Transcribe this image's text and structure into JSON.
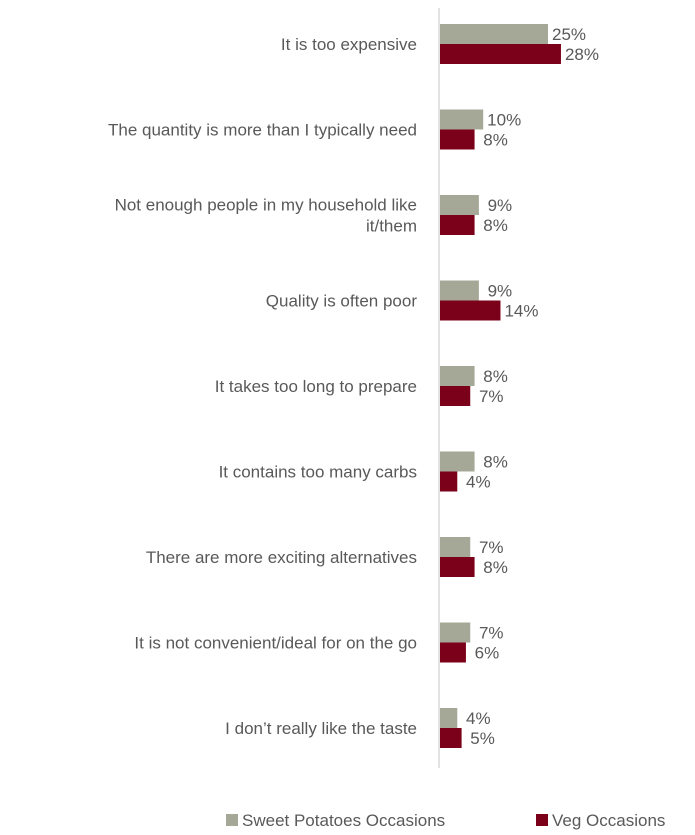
{
  "chart_data": {
    "type": "bar",
    "orientation": "horizontal",
    "categories": [
      [
        "It is too expensive"
      ],
      [
        "The quantity is more than I typically need"
      ],
      [
        "Not enough people in my household like",
        "it/them"
      ],
      [
        "Quality is often poor"
      ],
      [
        "It takes too long to prepare"
      ],
      [
        "It contains too many carbs"
      ],
      [
        "There are more exciting alternatives"
      ],
      [
        "It is not convenient/ideal for on the go"
      ],
      [
        "I don’t really like the taste"
      ]
    ],
    "series": [
      {
        "name": "Sweet Potatoes Occasions",
        "color": "#A5A897",
        "values": [
          25,
          10,
          9,
          9,
          8,
          8,
          7,
          7,
          4
        ],
        "labels": [
          "25%",
          "10%",
          "9%",
          "9%",
          "8%",
          "8%",
          "7%",
          "7%",
          "4%"
        ]
      },
      {
        "name": "Veg Occasions",
        "color": "#7B0019",
        "values": [
          28,
          8,
          8,
          14,
          7,
          4,
          8,
          6,
          5
        ],
        "labels": [
          "28%",
          "8%",
          "8%",
          "14%",
          "7%",
          "4%",
          "8%",
          "6%",
          "5%"
        ]
      }
    ],
    "legend_position": "bottom-right",
    "grid": false
  }
}
